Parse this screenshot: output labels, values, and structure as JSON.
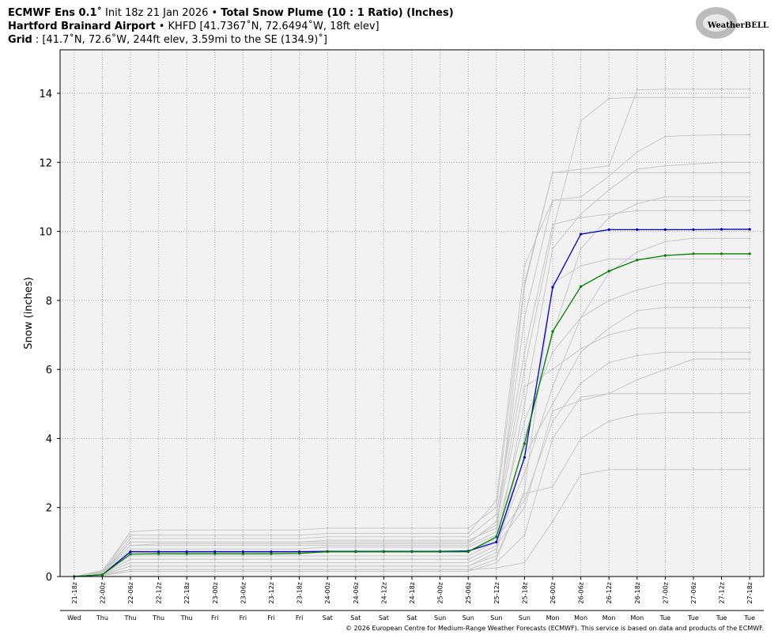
{
  "chart_data": {
    "type": "line",
    "title": [
      [
        "ECMWF Ens 0.1˚",
        "Init 18z 21 Jan 2026 •",
        "Total Snow Plume (10 : 1 Ratio) (Inches)"
      ],
      [
        "Hartford Brainard Airport",
        "• KHFD [41.7367˚N, 72.6494˚W, 18ft elev]"
      ],
      [
        "Grid",
        ": [41.7˚N, 72.6˚W, 244ft elev, 3.59mi to the SE (134.9)˚]"
      ]
    ],
    "logo": "WeatherBELL",
    "ylabel": "Snow (inches)",
    "footer": "© 2026 European Centre for Medium-Range Weather Forecasts (ECMWF). This service is based on data and products of the ECMWF.",
    "categories": [
      "21-18z",
      "22-00z",
      "22-06z",
      "22-12z",
      "22-18z",
      "23-00z",
      "23-06z",
      "23-12z",
      "23-18z",
      "24-00z",
      "24-06z",
      "24-12z",
      "24-18z",
      "25-00z",
      "25-06z",
      "25-12z",
      "25-18z",
      "26-00z",
      "26-06z",
      "26-12z",
      "26-18z",
      "27-00z",
      "27-06z",
      "27-12z",
      "27-18z"
    ],
    "weekdays": [
      "Wed",
      "Thu",
      "Thu",
      "Thu",
      "Thu",
      "Fri",
      "Fri",
      "Fri",
      "Fri",
      "Sat",
      "Sat",
      "Sat",
      "Sat",
      "Sun",
      "Sun",
      "Sun",
      "Sun",
      "Mon",
      "Mon",
      "Mon",
      "Mon",
      "Tue",
      "Tue",
      "Tue",
      "Tue"
    ],
    "ylim": [
      0,
      15.26
    ],
    "yticks": [
      0,
      2,
      4,
      6,
      8,
      10,
      12,
      14
    ],
    "grid": true,
    "series": [
      {
        "color": "#c8c8c8",
        "values": [
          0,
          0.15,
          1.3,
          1.35,
          1.35,
          1.35,
          1.35,
          1.35,
          1.35,
          1.4,
          1.4,
          1.4,
          1.4,
          1.4,
          1.4,
          2.0,
          8.5,
          11.7,
          11.8,
          11.9,
          14.1,
          14.12,
          14.12,
          14.12,
          14.12
        ]
      },
      {
        "color": "#c8c8c8",
        "values": [
          0,
          0.1,
          0.9,
          0.95,
          0.95,
          0.95,
          0.95,
          0.95,
          0.95,
          0.95,
          0.95,
          0.95,
          0.95,
          0.95,
          0.95,
          1.6,
          6.0,
          10.0,
          13.2,
          13.85,
          13.88,
          13.88,
          13.88,
          13.88,
          13.88
        ]
      },
      {
        "color": "#c8c8c8",
        "values": [
          0,
          0.1,
          1.0,
          1.0,
          1.0,
          1.0,
          1.0,
          1.0,
          1.0,
          1.05,
          1.05,
          1.05,
          1.05,
          1.05,
          1.05,
          1.4,
          7.5,
          10.9,
          11.0,
          11.6,
          12.3,
          12.75,
          12.78,
          12.8,
          12.8
        ]
      },
      {
        "color": "#c8c8c8",
        "values": [
          0,
          0.08,
          0.5,
          0.5,
          0.5,
          0.5,
          0.5,
          0.5,
          0.5,
          0.5,
          0.5,
          0.5,
          0.5,
          0.5,
          0.5,
          0.9,
          5.0,
          9.5,
          10.5,
          11.2,
          11.8,
          11.9,
          11.95,
          12.0,
          12.0
        ]
      },
      {
        "color": "#c8c8c8",
        "values": [
          0,
          0.12,
          0.8,
          0.8,
          0.8,
          0.8,
          0.8,
          0.8,
          0.8,
          0.85,
          0.85,
          0.85,
          0.85,
          0.85,
          0.85,
          1.2,
          8.4,
          11.7,
          11.7,
          11.7,
          11.7,
          11.7,
          11.7,
          11.7,
          11.7
        ]
      },
      {
        "color": "#c8c8c8",
        "values": [
          0,
          0.05,
          0.3,
          0.3,
          0.3,
          0.3,
          0.3,
          0.3,
          0.3,
          0.3,
          0.3,
          0.3,
          0.3,
          0.3,
          0.3,
          0.7,
          4.0,
          7.0,
          9.5,
          10.4,
          10.8,
          11.0,
          11.0,
          11.0,
          11.0
        ]
      },
      {
        "color": "#c8c8c8",
        "values": [
          0,
          0.15,
          1.1,
          1.1,
          1.1,
          1.1,
          1.1,
          1.1,
          1.1,
          1.15,
          1.15,
          1.15,
          1.15,
          1.15,
          1.15,
          1.8,
          6.5,
          10.2,
          10.4,
          10.5,
          10.6,
          10.6,
          10.6,
          10.6,
          10.6
        ]
      },
      {
        "color": "#c8c8c8",
        "values": [
          0,
          0.18,
          1.2,
          1.2,
          1.2,
          1.2,
          1.2,
          1.2,
          1.2,
          1.25,
          1.25,
          1.25,
          1.25,
          1.25,
          1.25,
          2.2,
          9.0,
          10.9,
          10.9,
          10.9,
          10.9,
          10.9,
          10.9,
          10.9,
          10.9
        ]
      },
      {
        "color": "#c8c8c8",
        "values": [
          0,
          0.1,
          0.6,
          0.6,
          0.6,
          0.6,
          0.6,
          0.6,
          0.6,
          0.6,
          0.6,
          0.6,
          0.6,
          0.6,
          0.6,
          1.0,
          3.0,
          5.5,
          7.5,
          8.8,
          9.4,
          9.7,
          9.8,
          9.8,
          9.8
        ]
      },
      {
        "color": "#c8c8c8",
        "values": [
          0,
          0.05,
          0.2,
          0.2,
          0.2,
          0.2,
          0.2,
          0.2,
          0.2,
          0.2,
          0.2,
          0.2,
          0.2,
          0.2,
          0.2,
          0.5,
          2.5,
          8.5,
          9.0,
          9.2,
          9.2,
          9.2,
          9.2,
          9.2,
          9.2
        ]
      },
      {
        "color": "#c8c8c8",
        "values": [
          0,
          0.12,
          0.9,
          0.9,
          0.9,
          0.9,
          0.9,
          0.9,
          0.9,
          0.9,
          0.9,
          0.9,
          0.9,
          0.9,
          0.9,
          1.3,
          4.5,
          6.5,
          7.5,
          8.0,
          8.3,
          8.5,
          8.5,
          8.5,
          8.5
        ]
      },
      {
        "color": "#c8c8c8",
        "values": [
          0,
          0.06,
          0.4,
          0.4,
          0.4,
          0.4,
          0.4,
          0.4,
          0.4,
          0.4,
          0.4,
          0.4,
          0.4,
          0.4,
          0.4,
          0.8,
          3.5,
          5.0,
          6.5,
          7.2,
          7.7,
          7.8,
          7.8,
          7.8,
          7.8
        ]
      },
      {
        "color": "#c8c8c8",
        "values": [
          0,
          0.14,
          1.0,
          1.0,
          1.0,
          1.0,
          1.0,
          1.0,
          1.0,
          1.0,
          1.0,
          1.0,
          1.0,
          1.0,
          1.0,
          1.5,
          5.5,
          6.0,
          6.6,
          7.0,
          7.2,
          7.2,
          7.2,
          7.2,
          7.2
        ]
      },
      {
        "color": "#c8c8c8",
        "values": [
          0,
          0.1,
          0.7,
          0.7,
          0.7,
          0.7,
          0.7,
          0.7,
          0.7,
          0.7,
          0.7,
          0.7,
          0.7,
          0.7,
          0.7,
          1.1,
          2.2,
          4.5,
          5.6,
          6.2,
          6.4,
          6.5,
          6.5,
          6.5,
          6.5
        ]
      },
      {
        "color": "#c8c8c8",
        "values": [
          0,
          0.03,
          0.15,
          0.15,
          0.15,
          0.15,
          0.15,
          0.15,
          0.15,
          0.15,
          0.15,
          0.15,
          0.15,
          0.15,
          0.15,
          0.4,
          1.2,
          4.0,
          5.2,
          5.3,
          5.7,
          6.0,
          6.3,
          6.3,
          6.3
        ]
      },
      {
        "color": "#c8c8c8",
        "values": [
          0,
          0.08,
          0.5,
          0.5,
          0.5,
          0.5,
          0.5,
          0.5,
          0.5,
          0.5,
          0.5,
          0.5,
          0.5,
          0.5,
          0.5,
          0.9,
          2.0,
          4.8,
          5.1,
          5.3,
          5.3,
          5.3,
          5.3,
          5.3,
          5.3
        ]
      },
      {
        "color": "#c8c8c8",
        "values": [
          0,
          0.05,
          0.3,
          0.3,
          0.3,
          0.3,
          0.3,
          0.3,
          0.3,
          0.3,
          0.3,
          0.3,
          0.3,
          0.3,
          0.3,
          0.6,
          2.4,
          2.6,
          4.0,
          4.5,
          4.7,
          4.75,
          4.75,
          4.75,
          4.75
        ]
      },
      {
        "color": "#c8c8c8",
        "values": [
          0,
          0.04,
          0.2,
          0.2,
          0.2,
          0.2,
          0.2,
          0.2,
          0.2,
          0.2,
          0.2,
          0.2,
          0.2,
          0.2,
          0.2,
          0.25,
          0.4,
          1.6,
          2.95,
          3.1,
          3.1,
          3.1,
          3.1,
          3.1,
          3.1
        ]
      },
      {
        "color": "#0000cc",
        "values": [
          0,
          0.05,
          0.72,
          0.72,
          0.72,
          0.72,
          0.72,
          0.72,
          0.72,
          0.73,
          0.73,
          0.73,
          0.73,
          0.73,
          0.74,
          1.0,
          3.45,
          8.38,
          9.92,
          10.05,
          10.05,
          10.05,
          10.05,
          10.06,
          10.06
        ]
      },
      {
        "color": "#008000",
        "values": [
          0,
          0.05,
          0.65,
          0.66,
          0.66,
          0.66,
          0.66,
          0.66,
          0.67,
          0.72,
          0.72,
          0.72,
          0.72,
          0.72,
          0.72,
          1.15,
          3.85,
          7.1,
          8.4,
          8.85,
          9.17,
          9.3,
          9.35,
          9.35,
          9.35
        ]
      }
    ]
  }
}
